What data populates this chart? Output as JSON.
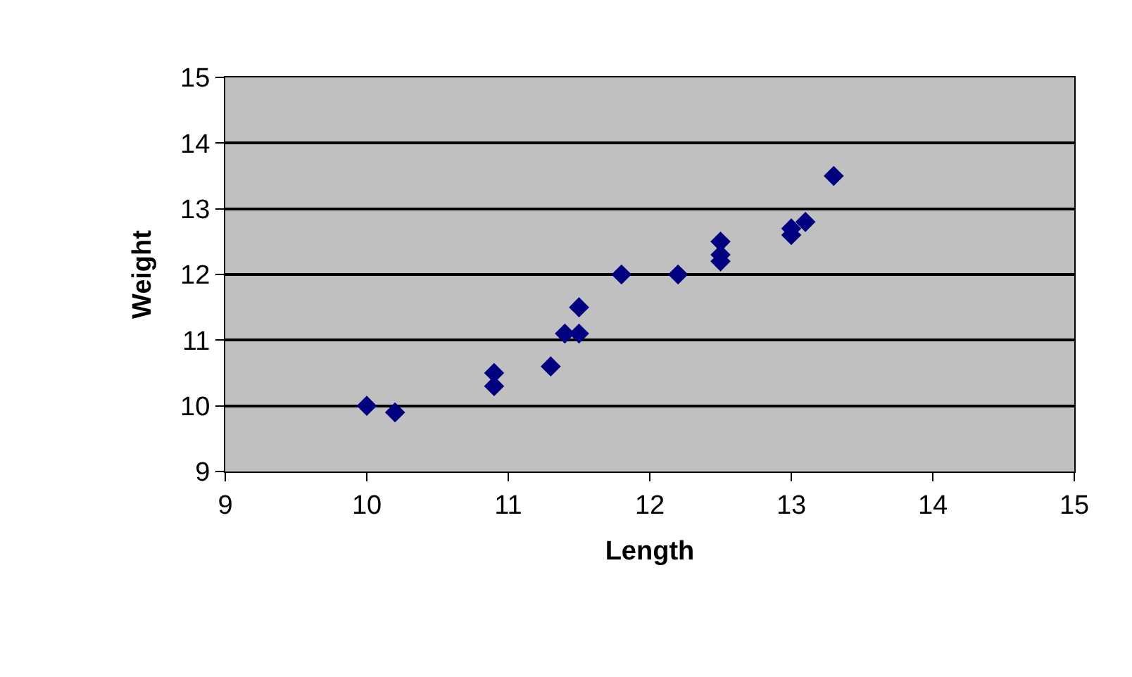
{
  "chart_data": {
    "type": "scatter",
    "xlabel": "Length",
    "ylabel": "Weight",
    "x": [
      10,
      10.2,
      10.9,
      10.9,
      11.3,
      11.4,
      11.5,
      11.5,
      11.8,
      12.2,
      12.5,
      12.5,
      12.5,
      13,
      13,
      13.1,
      13.3
    ],
    "series": [
      {
        "color": "#000080",
        "values": [
          10,
          9.9,
          10.5,
          10.3,
          10.6,
          11.1,
          11.1,
          11.5,
          12,
          12,
          12.5,
          12.3,
          12.2,
          12.6,
          12.7,
          12.8,
          13.5
        ]
      }
    ],
    "xlim": [
      9,
      15
    ],
    "xticks": [
      9,
      10,
      11,
      12,
      13,
      14,
      15
    ],
    "ylim": [
      9,
      15
    ],
    "yticks": [
      9,
      10,
      11,
      12,
      13,
      14,
      15
    ],
    "grid": "y",
    "marker": "diamond",
    "legend": false
  }
}
